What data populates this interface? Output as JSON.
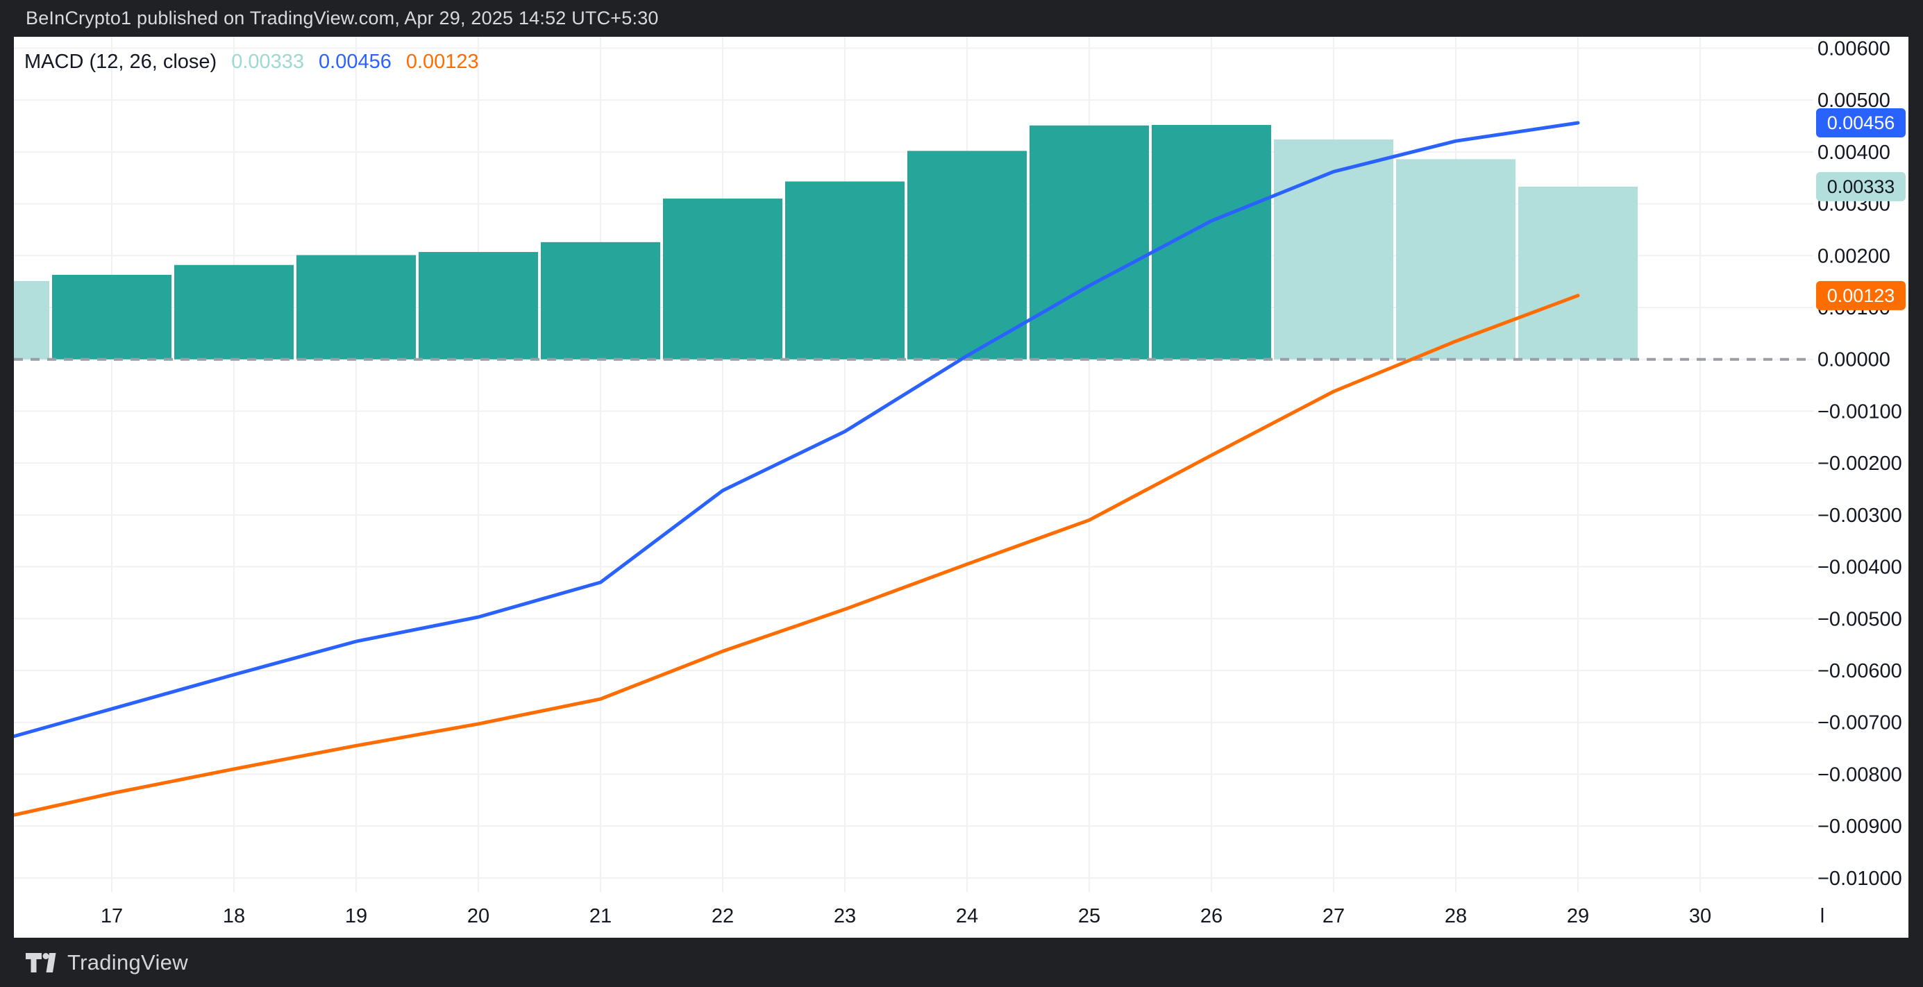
{
  "header": {
    "title": "BeInCrypto1 published on TradingView.com, Apr 29, 2025 14:52 UTC+5:30"
  },
  "legend": {
    "label": "MACD (12, 26, close)",
    "values": [
      {
        "text": "0.00333",
        "color": "#9fd8d0",
        "series": "histogram"
      },
      {
        "text": "0.00456",
        "color": "#2962ff",
        "series": "macd"
      },
      {
        "text": "0.00123",
        "color": "#ff6d00",
        "series": "signal"
      }
    ]
  },
  "chart_data": {
    "type": "bar",
    "subtype": "macd-indicator",
    "x_unit": "day of April 2025",
    "categories": [
      16,
      17,
      18,
      19,
      20,
      21,
      22,
      23,
      24,
      25,
      26,
      27,
      28,
      29
    ],
    "series": [
      {
        "name": "Histogram",
        "type": "bar",
        "values": [
          0.00151,
          0.00163,
          0.00182,
          0.00201,
          0.00207,
          0.00226,
          0.0031,
          0.00343,
          0.00402,
          0.00451,
          0.00452,
          0.00424,
          0.00386,
          0.00333
        ],
        "trend": [
          "fall",
          "rise",
          "rise",
          "rise",
          "rise",
          "rise",
          "rise",
          "rise",
          "rise",
          "rise",
          "rise",
          "fall",
          "fall",
          "fall"
        ]
      },
      {
        "name": "MACD",
        "type": "line",
        "color": "#2962ff",
        "values": [
          -0.0074,
          -0.00674,
          -0.00608,
          -0.00544,
          -0.00497,
          -0.0043,
          -0.00253,
          -0.00139,
          7e-05,
          0.00142,
          0.00267,
          0.00362,
          0.00421,
          0.00456
        ]
      },
      {
        "name": "Signal",
        "type": "line",
        "color": "#ff6d00",
        "values": [
          -0.00889,
          -0.00837,
          -0.0079,
          -0.00745,
          -0.00703,
          -0.00655,
          -0.00563,
          -0.00482,
          -0.00395,
          -0.0031,
          -0.00185,
          -0.00062,
          0.00035,
          0.00123
        ]
      }
    ],
    "colors": {
      "rise": "#26a69a",
      "fall": "#b2dfdb",
      "grid": "#f0f1f3",
      "zero_line": "#999ea8",
      "axis_text": "#131722",
      "plot_bg": "#ffffff"
    },
    "x_axis": {
      "tick_labels": [
        {
          "label": "17",
          "index": 1
        },
        {
          "label": "18",
          "index": 2
        },
        {
          "label": "19",
          "index": 3
        },
        {
          "label": "20",
          "index": 4
        },
        {
          "label": "21",
          "index": 5
        },
        {
          "label": "22",
          "index": 6
        },
        {
          "label": "23",
          "index": 7
        },
        {
          "label": "24",
          "index": 8
        },
        {
          "label": "25",
          "index": 9
        },
        {
          "label": "26",
          "index": 10
        },
        {
          "label": "27",
          "index": 11
        },
        {
          "label": "28",
          "index": 12
        },
        {
          "label": "29",
          "index": 13
        },
        {
          "label": "30",
          "index": 14
        },
        {
          "label": "l",
          "index": 15
        }
      ]
    },
    "y_axis": {
      "ylim": [
        -0.01027,
        0.00622
      ],
      "tick_values": [
        0.006,
        0.005,
        0.004,
        0.003,
        0.002,
        0.001,
        0.0,
        -0.001,
        -0.002,
        -0.003,
        -0.004,
        -0.005,
        -0.006,
        -0.007,
        -0.008,
        -0.009,
        -0.01
      ],
      "tick_labels": [
        "0.00600",
        "0.00500",
        "0.00400",
        "0.00300",
        "0.00200",
        "0.00100",
        "0.00000",
        "−0.00100",
        "−0.00200",
        "−0.00300",
        "−0.00400",
        "−0.00500",
        "−0.00600",
        "−0.00700",
        "−0.00800",
        "−0.00900",
        "−0.01000"
      ],
      "grid": true
    },
    "badges": [
      {
        "text": "0.00456",
        "value": 0.00456,
        "bg": "#2962ff",
        "fg": "#ffffff",
        "series": "macd"
      },
      {
        "text": "0.00333",
        "value": 0.00333,
        "bg": "#b2dfdb",
        "fg": "#131722",
        "series": "histogram"
      },
      {
        "text": "0.00123",
        "value": 0.00123,
        "bg": "#ff6d00",
        "fg": "#ffffff",
        "series": "signal"
      }
    ],
    "legend_position": "top-left"
  },
  "footer": {
    "brand": "TradingView"
  }
}
